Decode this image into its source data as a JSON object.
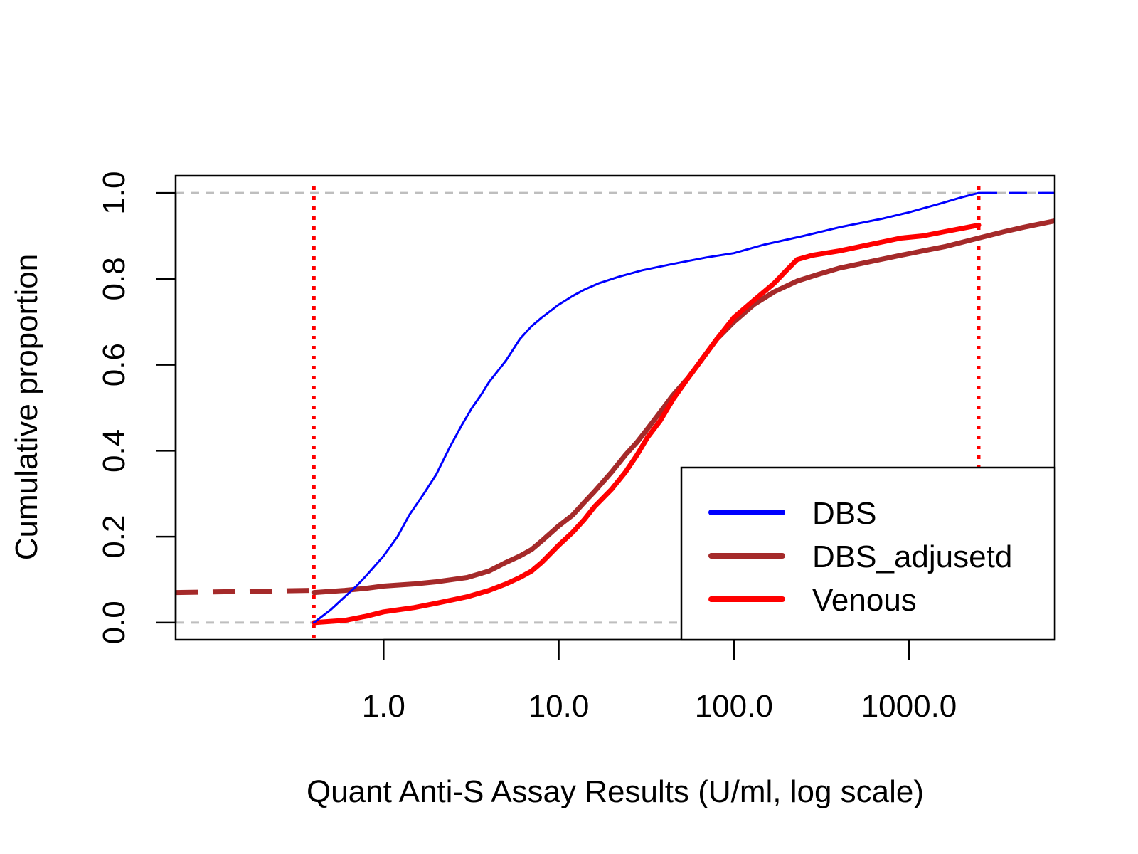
{
  "chart_data": {
    "type": "line",
    "title": "",
    "xlabel": "Quant Anti-S Assay Results (U/ml, log scale)",
    "ylabel": "Cumulative proportion",
    "x_scale": "log10",
    "xlim": [
      0.065,
      6800
    ],
    "ylim": [
      -0.04,
      1.04
    ],
    "x_ticks": [
      1,
      10,
      100,
      1000
    ],
    "x_tick_labels": [
      "1.0",
      "10.0",
      "100.0",
      "1000.0"
    ],
    "y_ticks": [
      0,
      0.2,
      0.4,
      0.6,
      0.8,
      1
    ],
    "y_tick_labels": [
      "0.0",
      "0.2",
      "0.4",
      "0.6",
      "0.8",
      "1.0"
    ],
    "grid": false,
    "legend_position": "bottom-right",
    "reference_lines": {
      "horizontal": {
        "y": [
          0,
          1
        ],
        "color": "#bebebe",
        "style": "dashed"
      },
      "vertical": {
        "x": [
          0.4,
          2500
        ],
        "color": "#ff0000",
        "style": "dotted"
      }
    },
    "series": [
      {
        "name": "DBS",
        "color": "#0000ff",
        "width": 3,
        "points": [
          [
            0.4,
            0
          ],
          [
            0.5,
            0.03
          ],
          [
            0.6,
            0.06
          ],
          [
            0.7,
            0.085
          ],
          [
            0.8,
            0.11
          ],
          [
            1.0,
            0.155
          ],
          [
            1.2,
            0.2
          ],
          [
            1.4,
            0.25
          ],
          [
            1.7,
            0.3
          ],
          [
            2.0,
            0.345
          ],
          [
            2.4,
            0.41
          ],
          [
            2.8,
            0.46
          ],
          [
            3.2,
            0.5
          ],
          [
            3.6,
            0.53
          ],
          [
            4.0,
            0.56
          ],
          [
            5.0,
            0.61
          ],
          [
            6.0,
            0.66
          ],
          [
            7.0,
            0.69
          ],
          [
            8.0,
            0.71
          ],
          [
            10.0,
            0.74
          ],
          [
            12.0,
            0.76
          ],
          [
            14.0,
            0.775
          ],
          [
            17.0,
            0.79
          ],
          [
            22.0,
            0.805
          ],
          [
            30.0,
            0.82
          ],
          [
            45.0,
            0.835
          ],
          [
            70.0,
            0.85
          ],
          [
            100.0,
            0.86
          ],
          [
            150.0,
            0.88
          ],
          [
            250.0,
            0.9
          ],
          [
            400.0,
            0.92
          ],
          [
            700.0,
            0.94
          ],
          [
            1000.0,
            0.955
          ],
          [
            1500.0,
            0.975
          ],
          [
            2000.0,
            0.99
          ],
          [
            2500.0,
            1.0
          ]
        ],
        "tail": {
          "from": 2500,
          "to": 6800,
          "y": 1.0,
          "style": "dashed"
        }
      },
      {
        "name": "DBS_adjusetd",
        "color": "#a52a2a",
        "width": 7,
        "points": [
          [
            0.4,
            0.07
          ],
          [
            0.6,
            0.075
          ],
          [
            0.8,
            0.08
          ],
          [
            1.0,
            0.085
          ],
          [
            1.5,
            0.09
          ],
          [
            2.0,
            0.095
          ],
          [
            3.0,
            0.105
          ],
          [
            4.0,
            0.12
          ],
          [
            5.0,
            0.14
          ],
          [
            6.0,
            0.155
          ],
          [
            7.0,
            0.17
          ],
          [
            8.0,
            0.19
          ],
          [
            10.0,
            0.225
          ],
          [
            12.0,
            0.25
          ],
          [
            14.0,
            0.28
          ],
          [
            16.0,
            0.305
          ],
          [
            20.0,
            0.35
          ],
          [
            24.0,
            0.39
          ],
          [
            28.0,
            0.42
          ],
          [
            32.0,
            0.45
          ],
          [
            38.0,
            0.49
          ],
          [
            45.0,
            0.53
          ],
          [
            55.0,
            0.57
          ],
          [
            65.0,
            0.61
          ],
          [
            80.0,
            0.66
          ],
          [
            100.0,
            0.7
          ],
          [
            130.0,
            0.74
          ],
          [
            170.0,
            0.77
          ],
          [
            230.0,
            0.795
          ],
          [
            300.0,
            0.81
          ],
          [
            400.0,
            0.825
          ],
          [
            600.0,
            0.84
          ],
          [
            900.0,
            0.855
          ],
          [
            1200.0,
            0.865
          ],
          [
            1600.0,
            0.875
          ],
          [
            2500.0,
            0.895
          ],
          [
            3500.0,
            0.91
          ],
          [
            4500.0,
            0.92
          ],
          [
            6800.0,
            0.935
          ]
        ],
        "lead": {
          "from": 0.065,
          "to": 0.4,
          "y0": 0.07,
          "y1": 0.075,
          "style": "dashed"
        }
      },
      {
        "name": "Venous",
        "color": "#ff0000",
        "width": 7,
        "points": [
          [
            0.4,
            0
          ],
          [
            0.6,
            0.005
          ],
          [
            0.8,
            0.015
          ],
          [
            1.0,
            0.025
          ],
          [
            1.5,
            0.035
          ],
          [
            2.0,
            0.045
          ],
          [
            3.0,
            0.06
          ],
          [
            4.0,
            0.075
          ],
          [
            5.0,
            0.09
          ],
          [
            6.0,
            0.105
          ],
          [
            7.0,
            0.12
          ],
          [
            8.0,
            0.14
          ],
          [
            10.0,
            0.18
          ],
          [
            12.0,
            0.21
          ],
          [
            14.0,
            0.24
          ],
          [
            16.0,
            0.27
          ],
          [
            20.0,
            0.31
          ],
          [
            24.0,
            0.35
          ],
          [
            28.0,
            0.39
          ],
          [
            32.0,
            0.43
          ],
          [
            38.0,
            0.47
          ],
          [
            45.0,
            0.52
          ],
          [
            55.0,
            0.57
          ],
          [
            65.0,
            0.61
          ],
          [
            80.0,
            0.66
          ],
          [
            100.0,
            0.71
          ],
          [
            130.0,
            0.75
          ],
          [
            170.0,
            0.79
          ],
          [
            200.0,
            0.82
          ],
          [
            230.0,
            0.845
          ],
          [
            280.0,
            0.855
          ],
          [
            400.0,
            0.865
          ],
          [
            600.0,
            0.88
          ],
          [
            900.0,
            0.895
          ],
          [
            1200.0,
            0.9
          ],
          [
            1600.0,
            0.91
          ],
          [
            2500.0,
            0.925
          ]
        ]
      }
    ]
  }
}
